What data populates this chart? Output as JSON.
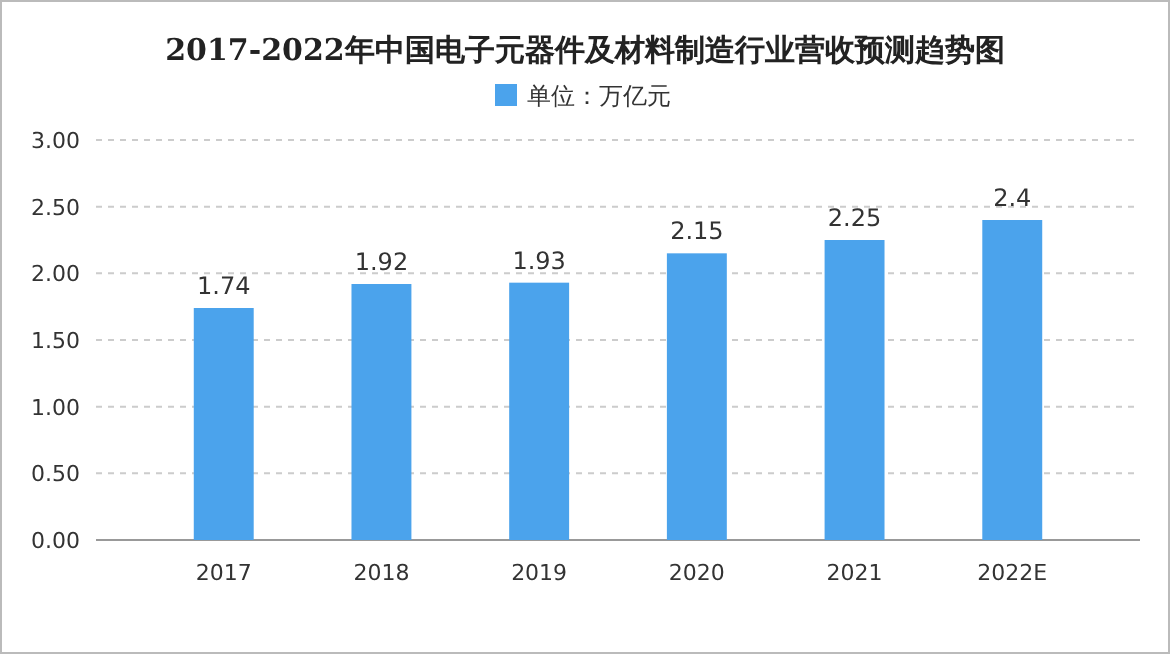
{
  "chart_data": {
    "type": "bar",
    "title": "2017-2022年中国电子元器件及材料制造行业营收预测趋势图",
    "categories": [
      "2017",
      "2018",
      "2019",
      "2020",
      "2021",
      "2022E"
    ],
    "series": [
      {
        "name": "单位：万亿元",
        "color": "#4ba3ec",
        "values": [
          1.74,
          1.92,
          1.93,
          2.15,
          2.25,
          2.4
        ]
      }
    ],
    "ylim": [
      0,
      3
    ],
    "yticks": [
      {
        "value": 0,
        "label": "0.00"
      },
      {
        "value": 0.5,
        "label": "0.50"
      },
      {
        "value": 1,
        "label": "1.00"
      },
      {
        "value": 1.5,
        "label": "1.50"
      },
      {
        "value": 2,
        "label": "2.00"
      },
      {
        "value": 2.5,
        "label": "2.50"
      },
      {
        "value": 3,
        "label": "3.00"
      }
    ],
    "grid": "y",
    "legend": "top",
    "data_labels": true
  }
}
